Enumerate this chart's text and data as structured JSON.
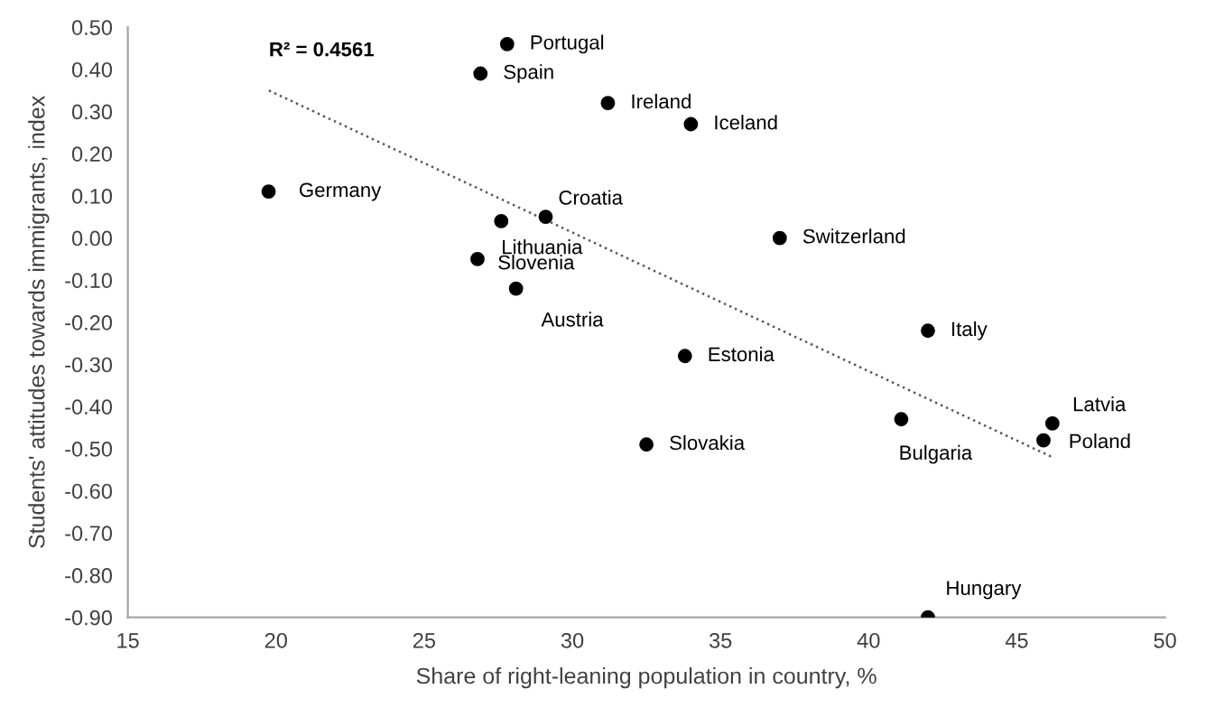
{
  "chart_data": {
    "type": "scatter",
    "xlabel": "Share of right-leaning population in country, %",
    "ylabel": "Students' attitudes towards immigrants, index",
    "xlim": [
      15,
      50
    ],
    "xticks": [
      15,
      20,
      25,
      30,
      35,
      40,
      45,
      50
    ],
    "ylim": [
      -0.9,
      0.5
    ],
    "yticks": [
      {
        "value": -0.9,
        "label": "-0.90"
      },
      {
        "value": -0.8,
        "label": "-0.80"
      },
      {
        "value": -0.7,
        "label": "-0.70"
      },
      {
        "value": -0.6,
        "label": "-0.60"
      },
      {
        "value": -0.5,
        "label": "-0.50"
      },
      {
        "value": -0.4,
        "label": "-0.40"
      },
      {
        "value": -0.3,
        "label": "-0.30"
      },
      {
        "value": -0.2,
        "label": "-0.20"
      },
      {
        "value": -0.1,
        "label": "-0.10"
      },
      {
        "value": 0,
        "label": "0.00"
      },
      {
        "value": 0.1,
        "label": "0.10"
      },
      {
        "value": 0.2,
        "label": "0.20"
      },
      {
        "value": 0.3,
        "label": "0.30"
      },
      {
        "value": 0.4,
        "label": "0.40"
      },
      {
        "value": 0.5,
        "label": "0.50"
      }
    ],
    "grid": false,
    "series": [
      {
        "marker": "circle",
        "color": "#000000",
        "x": [
          27.8,
          26.9,
          31.2,
          34.0,
          19.75,
          29.1,
          27.6,
          26.8,
          28.1,
          37.0,
          42.0,
          33.8,
          32.5,
          41.1,
          46.2,
          45.9,
          42.0
        ],
        "values": [
          0.46,
          0.39,
          0.32,
          0.27,
          0.11,
          0.05,
          0.04,
          -0.05,
          -0.12,
          0.0,
          -0.22,
          -0.28,
          -0.49,
          -0.43,
          -0.44,
          -0.48,
          -0.9
        ]
      },
      {
        "type": "line",
        "color": "#595959",
        "line_style": "dotted",
        "x": [
          19.76,
          46.2
        ],
        "values": [
          0.35,
          -0.52
        ]
      }
    ],
    "annotations": [
      {
        "text": "Portugal",
        "x": 27.8,
        "y": 0.46
      },
      {
        "text": "Spain",
        "x": 26.9,
        "y": 0.39
      },
      {
        "text": "Ireland",
        "x": 31.2,
        "y": 0.32
      },
      {
        "text": "Iceland",
        "x": 34.0,
        "y": 0.27
      },
      {
        "text": "Germany",
        "x": 19.75,
        "y": 0.11
      },
      {
        "text": "Croatia",
        "x": 29.1,
        "y": 0.05
      },
      {
        "text": "Lithuania",
        "x": 27.6,
        "y": 0.04
      },
      {
        "text": "Slovenia",
        "x": 26.8,
        "y": -0.05
      },
      {
        "text": "Austria",
        "x": 28.1,
        "y": -0.12
      },
      {
        "text": "Switzerland",
        "x": 37.0,
        "y": 0.0
      },
      {
        "text": "Italy",
        "x": 42.0,
        "y": -0.22
      },
      {
        "text": "Estonia",
        "x": 33.8,
        "y": -0.28
      },
      {
        "text": "Slovakia",
        "x": 32.5,
        "y": -0.49
      },
      {
        "text": "Bulgaria",
        "x": 41.1,
        "y": -0.43
      },
      {
        "text": "Latvia",
        "x": 46.2,
        "y": -0.44
      },
      {
        "text": "Poland",
        "x": 45.9,
        "y": -0.48
      },
      {
        "text": "Hungary",
        "x": 42.0,
        "y": -0.9
      },
      {
        "text": "R² = 0.4561",
        "x": 19.76,
        "y": 0.35
      }
    ]
  }
}
